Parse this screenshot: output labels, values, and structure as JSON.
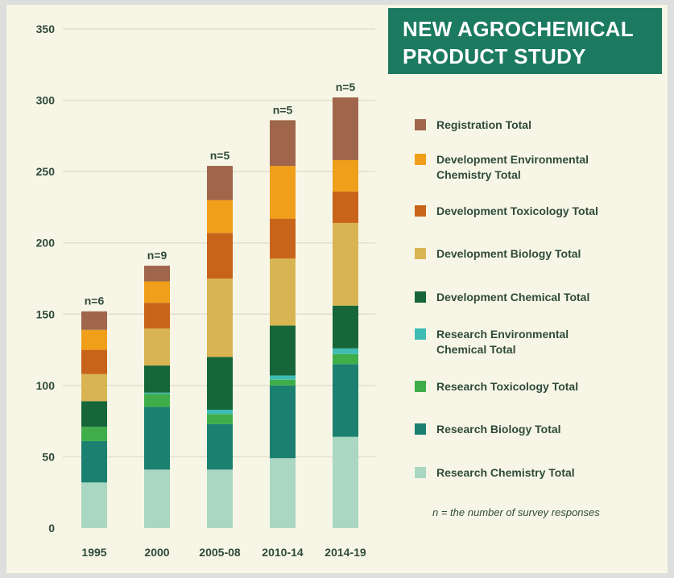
{
  "title": {
    "line1": "NEW AGROCHEMICAL",
    "line2": "PRODUCT STUDY"
  },
  "footnote": "n = the number of survey responses",
  "chart_data": {
    "type": "bar",
    "stacked": true,
    "categories": [
      "1995",
      "2000",
      "2005-08",
      "2010-14",
      "2014-19"
    ],
    "n_labels": [
      "n=6",
      "n=9",
      "n=5",
      "n=5",
      "n=5"
    ],
    "ylim": [
      0,
      350
    ],
    "yticks": [
      0,
      50,
      100,
      150,
      200,
      250,
      300,
      350
    ],
    "grid": true,
    "legend_position": "right",
    "series": [
      {
        "name": "Research Chemistry Total",
        "color": "#a9d7c1",
        "values": [
          32,
          41,
          41,
          49,
          64
        ]
      },
      {
        "name": "Research Biology Total",
        "color": "#1b8070",
        "values": [
          29,
          44,
          32,
          51,
          51
        ]
      },
      {
        "name": "Research Toxicology Total",
        "color": "#3fae4a",
        "values": [
          10,
          9,
          7,
          4,
          7
        ]
      },
      {
        "name": "Research Environmental Chemical Total",
        "color": "#3fbcb4",
        "values": [
          0,
          1,
          3,
          3,
          4
        ]
      },
      {
        "name": "Development Chemical Total",
        "color": "#17663a",
        "values": [
          18,
          19,
          37,
          35,
          30
        ]
      },
      {
        "name": "Development Biology Total",
        "color": "#d8b552",
        "values": [
          19,
          26,
          55,
          47,
          58
        ]
      },
      {
        "name": "Development Toxicology Total",
        "color": "#c8641a",
        "values": [
          17,
          18,
          32,
          28,
          22
        ]
      },
      {
        "name": "Development Environmental Chemistry Total",
        "color": "#f09f1b",
        "values": [
          14,
          15,
          23,
          37,
          22
        ]
      },
      {
        "name": "Registration Total",
        "color": "#a0664b",
        "values": [
          13,
          11,
          24,
          32,
          44
        ]
      }
    ],
    "legend_order": [
      "Registration Total",
      "Development Environmental Chemistry Total",
      "Development Toxicology Total",
      "Development Biology Total",
      "Development Chemical Total",
      "Research Environmental Chemical Total",
      "Research Toxicology Total",
      "Research Biology Total",
      "Research Chemistry Total"
    ]
  },
  "legend": [
    {
      "label": "Registration Total",
      "color": "#a0664b"
    },
    {
      "label": "Development Environmental Chemistry Total",
      "color": "#f09f1b"
    },
    {
      "label": "Development Toxicology Total",
      "color": "#c8641a"
    },
    {
      "label": "Development Biology Total",
      "color": "#d8b552"
    },
    {
      "label": "Development Chemical Total",
      "color": "#17663a"
    },
    {
      "label": "Research Environmental Chemical Total",
      "color": "#3fbcb4"
    },
    {
      "label": "Research Toxicology Total",
      "color": "#3fae4a"
    },
    {
      "label": "Research Biology Total",
      "color": "#1b8070"
    },
    {
      "label": "Research Chemistry Total",
      "color": "#a9d7c1"
    }
  ]
}
